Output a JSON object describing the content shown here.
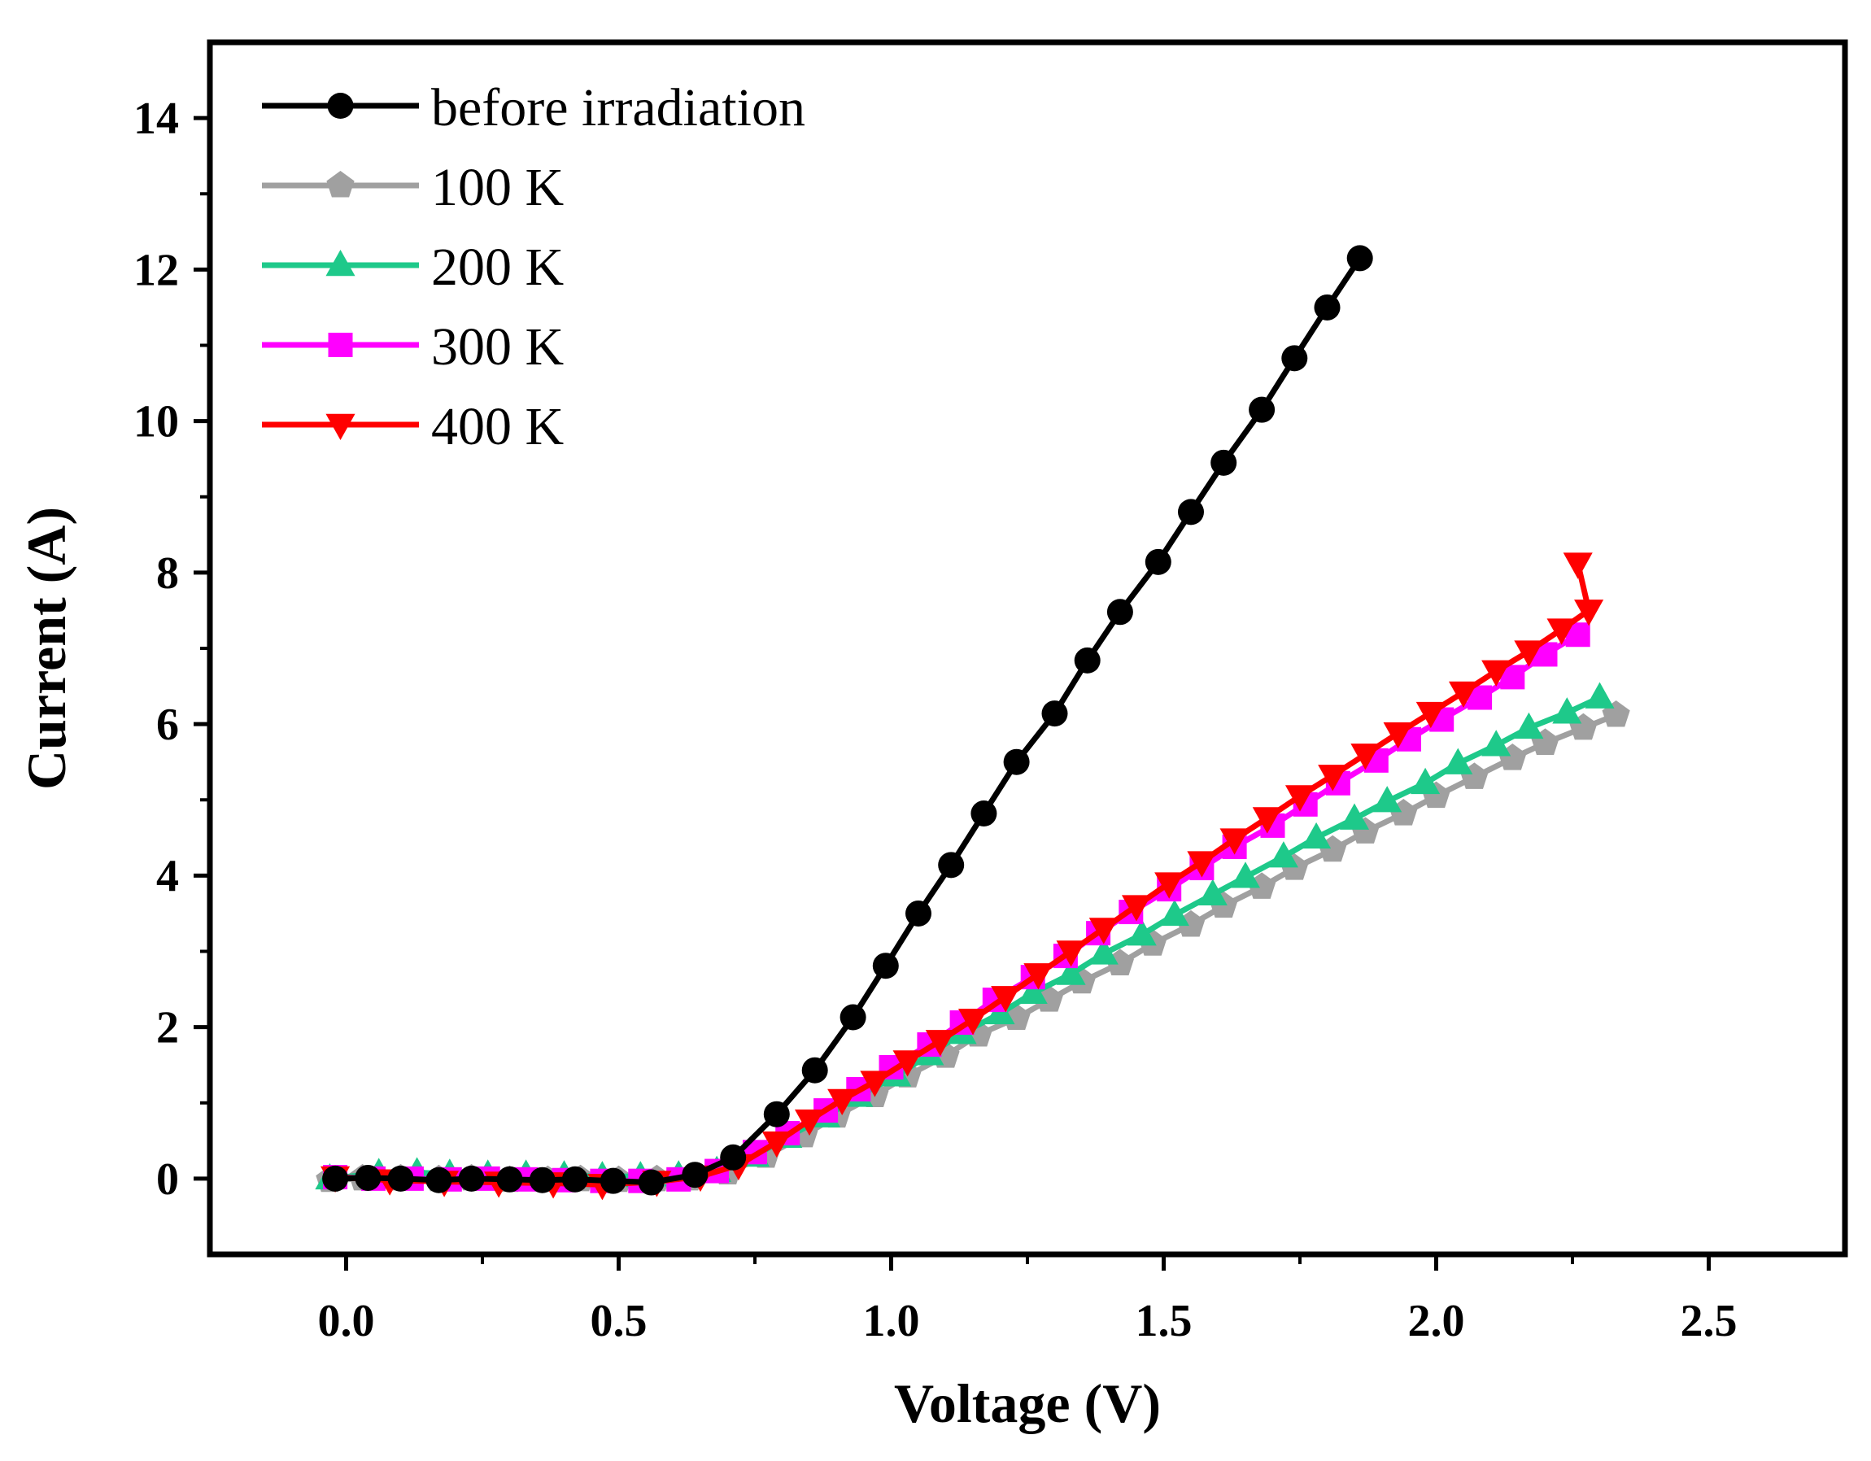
{
  "chart_data": {
    "type": "line",
    "title": "",
    "xlabel": "Voltage (V)",
    "ylabel": "Current (A)",
    "xlim": [
      -0.25,
      2.75
    ],
    "ylim": [
      -1,
      15
    ],
    "xticks": [
      0.0,
      0.5,
      1.0,
      1.5,
      2.0,
      2.5
    ],
    "xtick_labels": [
      "0.0",
      "0.5",
      "1.0",
      "1.5",
      "2.0",
      "2.5"
    ],
    "yticks": [
      0,
      2,
      4,
      6,
      8,
      10,
      12,
      14
    ],
    "ytick_labels": [
      "0",
      "2",
      "4",
      "6",
      "8",
      "10",
      "12",
      "14"
    ],
    "grid": false,
    "legend_position": "top-left",
    "series": [
      {
        "name": "before irradiation",
        "color": "#000000",
        "marker": "circle",
        "points": [
          [
            -0.02,
            0.0
          ],
          [
            0.04,
            0.01
          ],
          [
            0.1,
            0.0
          ],
          [
            0.17,
            -0.02
          ],
          [
            0.23,
            0.0
          ],
          [
            0.3,
            -0.01
          ],
          [
            0.36,
            -0.02
          ],
          [
            0.42,
            -0.01
          ],
          [
            0.49,
            -0.03
          ],
          [
            0.56,
            -0.05
          ],
          [
            0.64,
            0.05
          ],
          [
            0.71,
            0.28
          ],
          [
            0.79,
            0.85
          ],
          [
            0.86,
            1.43
          ],
          [
            0.93,
            2.13
          ],
          [
            0.99,
            2.81
          ],
          [
            1.05,
            3.5
          ],
          [
            1.11,
            4.14
          ],
          [
            1.17,
            4.82
          ],
          [
            1.23,
            5.5
          ],
          [
            1.3,
            6.14
          ],
          [
            1.36,
            6.84
          ],
          [
            1.42,
            7.48
          ],
          [
            1.49,
            8.14
          ],
          [
            1.55,
            8.8
          ],
          [
            1.61,
            9.45
          ],
          [
            1.68,
            10.15
          ],
          [
            1.74,
            10.83
          ],
          [
            1.8,
            11.5
          ],
          [
            1.86,
            12.15
          ]
        ]
      },
      {
        "name": "100 K",
        "color": "#a0a0a0",
        "marker": "pentagon",
        "points": [
          [
            -0.03,
            -0.02
          ],
          [
            0.03,
            0.0
          ],
          [
            0.1,
            0.0
          ],
          [
            0.17,
            -0.01
          ],
          [
            0.23,
            0.0
          ],
          [
            0.3,
            -0.02
          ],
          [
            0.37,
            -0.02
          ],
          [
            0.43,
            -0.01
          ],
          [
            0.5,
            -0.02
          ],
          [
            0.57,
            -0.01
          ],
          [
            0.63,
            0.0
          ],
          [
            0.7,
            0.08
          ],
          [
            0.77,
            0.3
          ],
          [
            0.84,
            0.57
          ],
          [
            0.9,
            0.83
          ],
          [
            0.97,
            1.1
          ],
          [
            1.03,
            1.36
          ],
          [
            1.1,
            1.62
          ],
          [
            1.16,
            1.9
          ],
          [
            1.23,
            2.12
          ],
          [
            1.29,
            2.36
          ],
          [
            1.35,
            2.6
          ],
          [
            1.42,
            2.84
          ],
          [
            1.48,
            3.1
          ],
          [
            1.55,
            3.35
          ],
          [
            1.61,
            3.6
          ],
          [
            1.68,
            3.85
          ],
          [
            1.74,
            4.1
          ],
          [
            1.81,
            4.34
          ],
          [
            1.87,
            4.58
          ],
          [
            1.94,
            4.82
          ],
          [
            2.0,
            5.05
          ],
          [
            2.07,
            5.3
          ],
          [
            2.14,
            5.55
          ],
          [
            2.2,
            5.75
          ],
          [
            2.27,
            5.95
          ],
          [
            2.33,
            6.12
          ]
        ]
      },
      {
        "name": "200 K",
        "color": "#1ec98a",
        "marker": "triangle-up",
        "points": [
          [
            -0.03,
            0.0
          ],
          [
            0.06,
            0.07
          ],
          [
            0.13,
            0.08
          ],
          [
            0.19,
            0.06
          ],
          [
            0.26,
            0.05
          ],
          [
            0.33,
            0.05
          ],
          [
            0.4,
            0.04
          ],
          [
            0.47,
            0.03
          ],
          [
            0.54,
            0.03
          ],
          [
            0.61,
            0.04
          ],
          [
            0.68,
            0.1
          ],
          [
            0.75,
            0.3
          ],
          [
            0.81,
            0.55
          ],
          [
            0.88,
            0.82
          ],
          [
            0.94,
            1.09
          ],
          [
            1.01,
            1.36
          ],
          [
            1.07,
            1.64
          ],
          [
            1.13,
            1.92
          ],
          [
            1.2,
            2.18
          ],
          [
            1.26,
            2.45
          ],
          [
            1.33,
            2.7
          ],
          [
            1.39,
            2.97
          ],
          [
            1.46,
            3.22
          ],
          [
            1.52,
            3.48
          ],
          [
            1.59,
            3.75
          ],
          [
            1.65,
            3.98
          ],
          [
            1.72,
            4.25
          ],
          [
            1.78,
            4.5
          ],
          [
            1.85,
            4.75
          ],
          [
            1.91,
            4.98
          ],
          [
            1.98,
            5.22
          ],
          [
            2.04,
            5.48
          ],
          [
            2.11,
            5.72
          ],
          [
            2.17,
            5.95
          ],
          [
            2.24,
            6.15
          ],
          [
            2.3,
            6.35
          ]
        ]
      },
      {
        "name": "300 K",
        "color": "#ff00ff",
        "marker": "square",
        "points": [
          [
            -0.02,
            0.02
          ],
          [
            0.05,
            0.0
          ],
          [
            0.12,
            0.0
          ],
          [
            0.19,
            -0.01
          ],
          [
            0.26,
            0.0
          ],
          [
            0.33,
            -0.01
          ],
          [
            0.4,
            -0.02
          ],
          [
            0.47,
            -0.03
          ],
          [
            0.54,
            -0.03
          ],
          [
            0.61,
            -0.01
          ],
          [
            0.68,
            0.1
          ],
          [
            0.75,
            0.35
          ],
          [
            0.81,
            0.6
          ],
          [
            0.88,
            0.9
          ],
          [
            0.94,
            1.18
          ],
          [
            1.0,
            1.47
          ],
          [
            1.07,
            1.77
          ],
          [
            1.13,
            2.06
          ],
          [
            1.19,
            2.36
          ],
          [
            1.26,
            2.66
          ],
          [
            1.32,
            2.94
          ],
          [
            1.38,
            3.24
          ],
          [
            1.44,
            3.52
          ],
          [
            1.51,
            3.82
          ],
          [
            1.57,
            4.1
          ],
          [
            1.63,
            4.38
          ],
          [
            1.7,
            4.66
          ],
          [
            1.76,
            4.94
          ],
          [
            1.82,
            5.22
          ],
          [
            1.89,
            5.52
          ],
          [
            1.95,
            5.8
          ],
          [
            2.01,
            6.06
          ],
          [
            2.08,
            6.35
          ],
          [
            2.14,
            6.62
          ],
          [
            2.2,
            6.92
          ],
          [
            2.26,
            7.18
          ]
        ]
      },
      {
        "name": "400 K",
        "color": "#ff0000",
        "marker": "triangle-down",
        "points": [
          [
            -0.02,
            0.02
          ],
          [
            0.08,
            -0.02
          ],
          [
            0.18,
            -0.04
          ],
          [
            0.28,
            -0.05
          ],
          [
            0.38,
            -0.06
          ],
          [
            0.47,
            -0.08
          ],
          [
            0.57,
            -0.04
          ],
          [
            0.65,
            0.03
          ],
          [
            0.72,
            0.18
          ],
          [
            0.79,
            0.48
          ],
          [
            0.85,
            0.77
          ],
          [
            0.91,
            1.04
          ],
          [
            0.97,
            1.28
          ],
          [
            1.03,
            1.55
          ],
          [
            1.09,
            1.82
          ],
          [
            1.15,
            2.1
          ],
          [
            1.21,
            2.4
          ],
          [
            1.27,
            2.7
          ],
          [
            1.33,
            3.0
          ],
          [
            1.39,
            3.3
          ],
          [
            1.45,
            3.6
          ],
          [
            1.51,
            3.9
          ],
          [
            1.57,
            4.18
          ],
          [
            1.63,
            4.48
          ],
          [
            1.69,
            4.76
          ],
          [
            1.75,
            5.05
          ],
          [
            1.81,
            5.32
          ],
          [
            1.87,
            5.6
          ],
          [
            1.93,
            5.88
          ],
          [
            1.99,
            6.15
          ],
          [
            2.05,
            6.42
          ],
          [
            2.11,
            6.7
          ],
          [
            2.17,
            6.96
          ],
          [
            2.23,
            7.25
          ],
          [
            2.28,
            7.5
          ],
          [
            2.26,
            8.12
          ]
        ]
      }
    ]
  }
}
